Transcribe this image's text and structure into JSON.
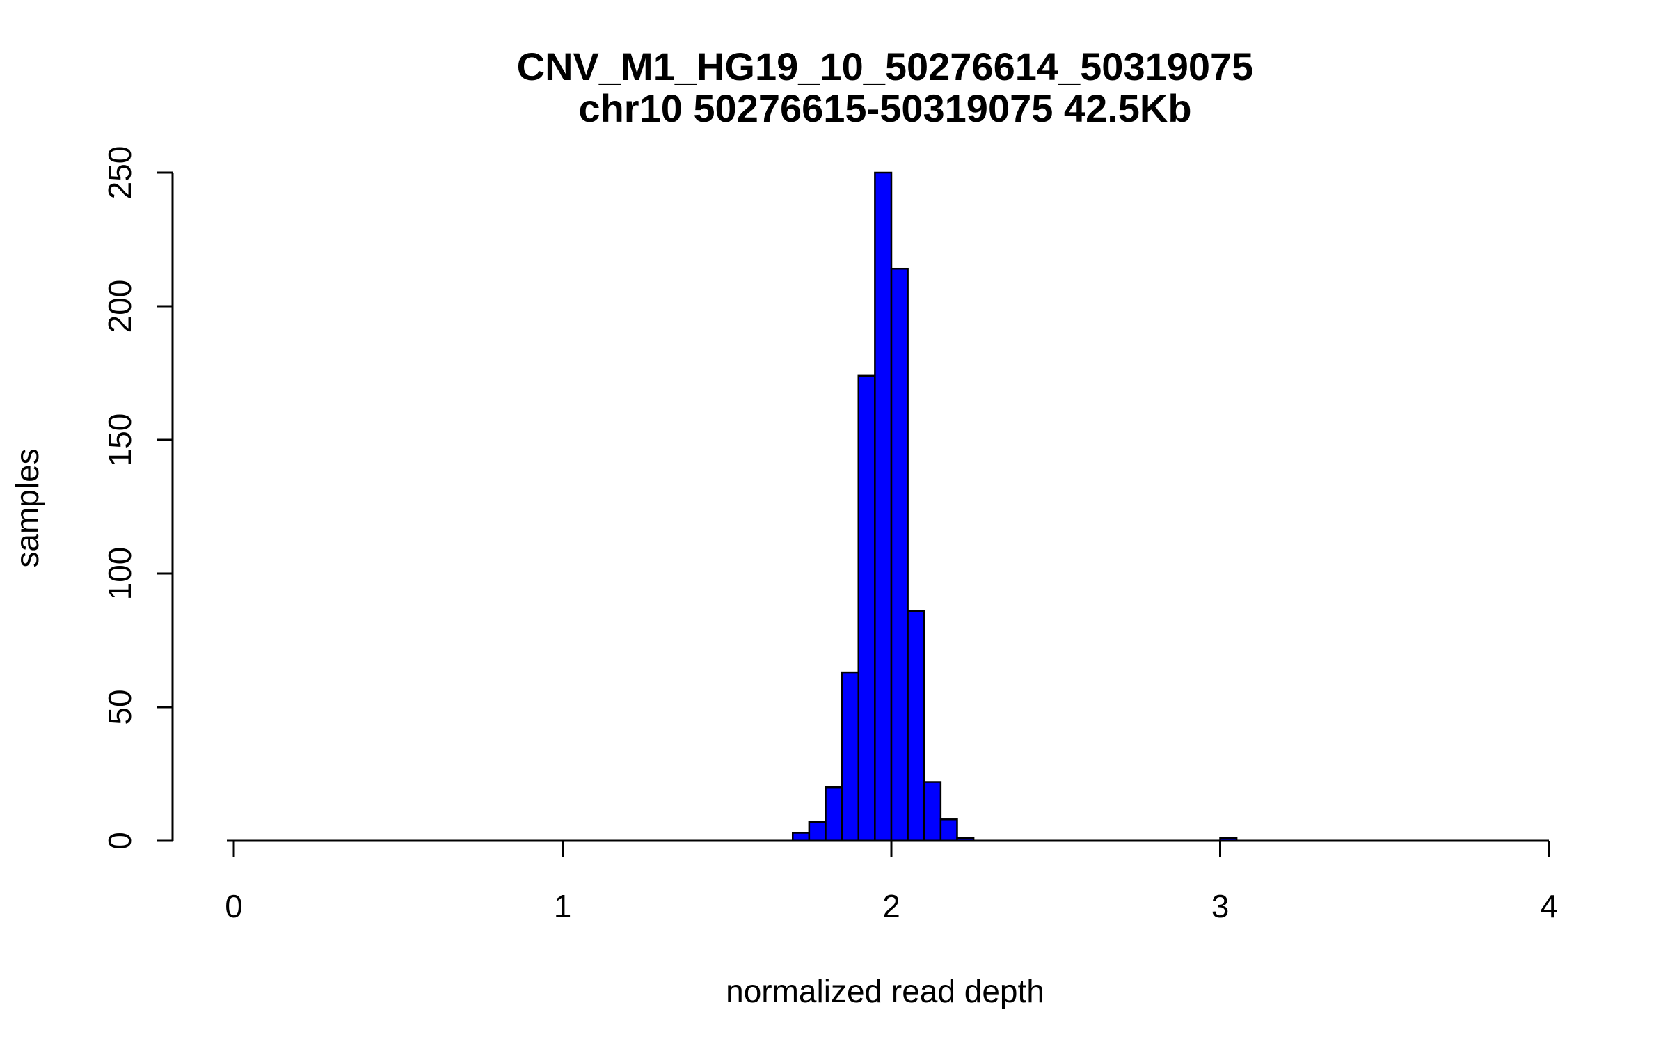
{
  "chart_data": {
    "type": "bar",
    "title": "CNV_M1_HG19_10_50276614_50319075",
    "subtitle": "chr10 50276615-50319075 42.5Kb",
    "xlabel": "normalized read depth",
    "ylabel": "samples",
    "xlim": [
      0,
      4
    ],
    "ylim": [
      0,
      250
    ],
    "xticks": [
      "0",
      "1",
      "2",
      "3",
      "4"
    ],
    "yticks": [
      "0",
      "50",
      "100",
      "150",
      "200",
      "250"
    ],
    "bin_width": 0.05,
    "bar_color": "#0000ff",
    "grid": false,
    "bins": [
      {
        "start": 1.7,
        "value": 3
      },
      {
        "start": 1.75,
        "value": 7
      },
      {
        "start": 1.8,
        "value": 20
      },
      {
        "start": 1.85,
        "value": 63
      },
      {
        "start": 1.9,
        "value": 174
      },
      {
        "start": 1.95,
        "value": 250
      },
      {
        "start": 2.0,
        "value": 214
      },
      {
        "start": 2.05,
        "value": 86
      },
      {
        "start": 2.1,
        "value": 22
      },
      {
        "start": 2.15,
        "value": 8
      },
      {
        "start": 2.2,
        "value": 1
      },
      {
        "start": 3.0,
        "value": 1
      }
    ]
  }
}
